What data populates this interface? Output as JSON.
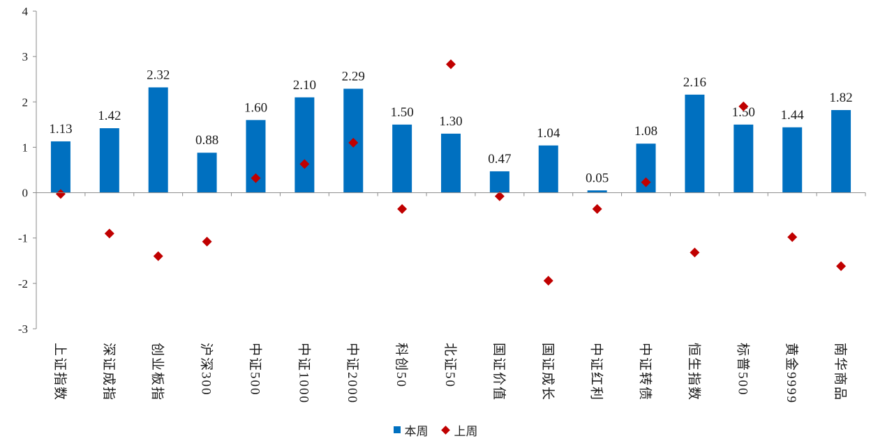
{
  "chart_data": {
    "type": "bar",
    "title": "",
    "xlabel": "",
    "ylabel": "",
    "ylim": [
      -3,
      4
    ],
    "yticks": [
      "4",
      "3",
      "2",
      "1",
      "0",
      "-1",
      "-2",
      "-3"
    ],
    "categories": [
      "上证指数",
      "深证成指",
      "创业板指",
      "沪深300",
      "中证500",
      "中证1000",
      "中证2000",
      "科创50",
      "北证50",
      "国证价值",
      "国证成长",
      "中证红利",
      "中证转债",
      "恒生指数",
      "标普500",
      "黄金9999",
      "南华商品"
    ],
    "series": [
      {
        "name": "本周",
        "kind": "bar",
        "color": "#0070C0",
        "values": [
          1.13,
          1.42,
          2.32,
          0.88,
          1.6,
          2.1,
          2.29,
          1.5,
          1.3,
          0.47,
          1.04,
          0.05,
          1.08,
          2.16,
          1.5,
          1.44,
          1.82
        ],
        "labels": [
          "1.13",
          "1.42",
          "2.32",
          "0.88",
          "1.60",
          "2.10",
          "2.29",
          "1.50",
          "1.30",
          "0.47",
          "1.04",
          "0.05",
          "1.08",
          "2.16",
          "1.50",
          "1.44",
          "1.82"
        ]
      },
      {
        "name": "上周",
        "kind": "scatter",
        "marker": "diamond",
        "color": "#C00000",
        "values": [
          -0.03,
          -0.9,
          -1.4,
          -1.08,
          0.32,
          0.63,
          1.1,
          -0.36,
          2.83,
          -0.08,
          -1.94,
          -0.36,
          0.23,
          -1.32,
          1.9,
          -0.98,
          -1.62
        ]
      }
    ],
    "legend": "bottom-center"
  }
}
